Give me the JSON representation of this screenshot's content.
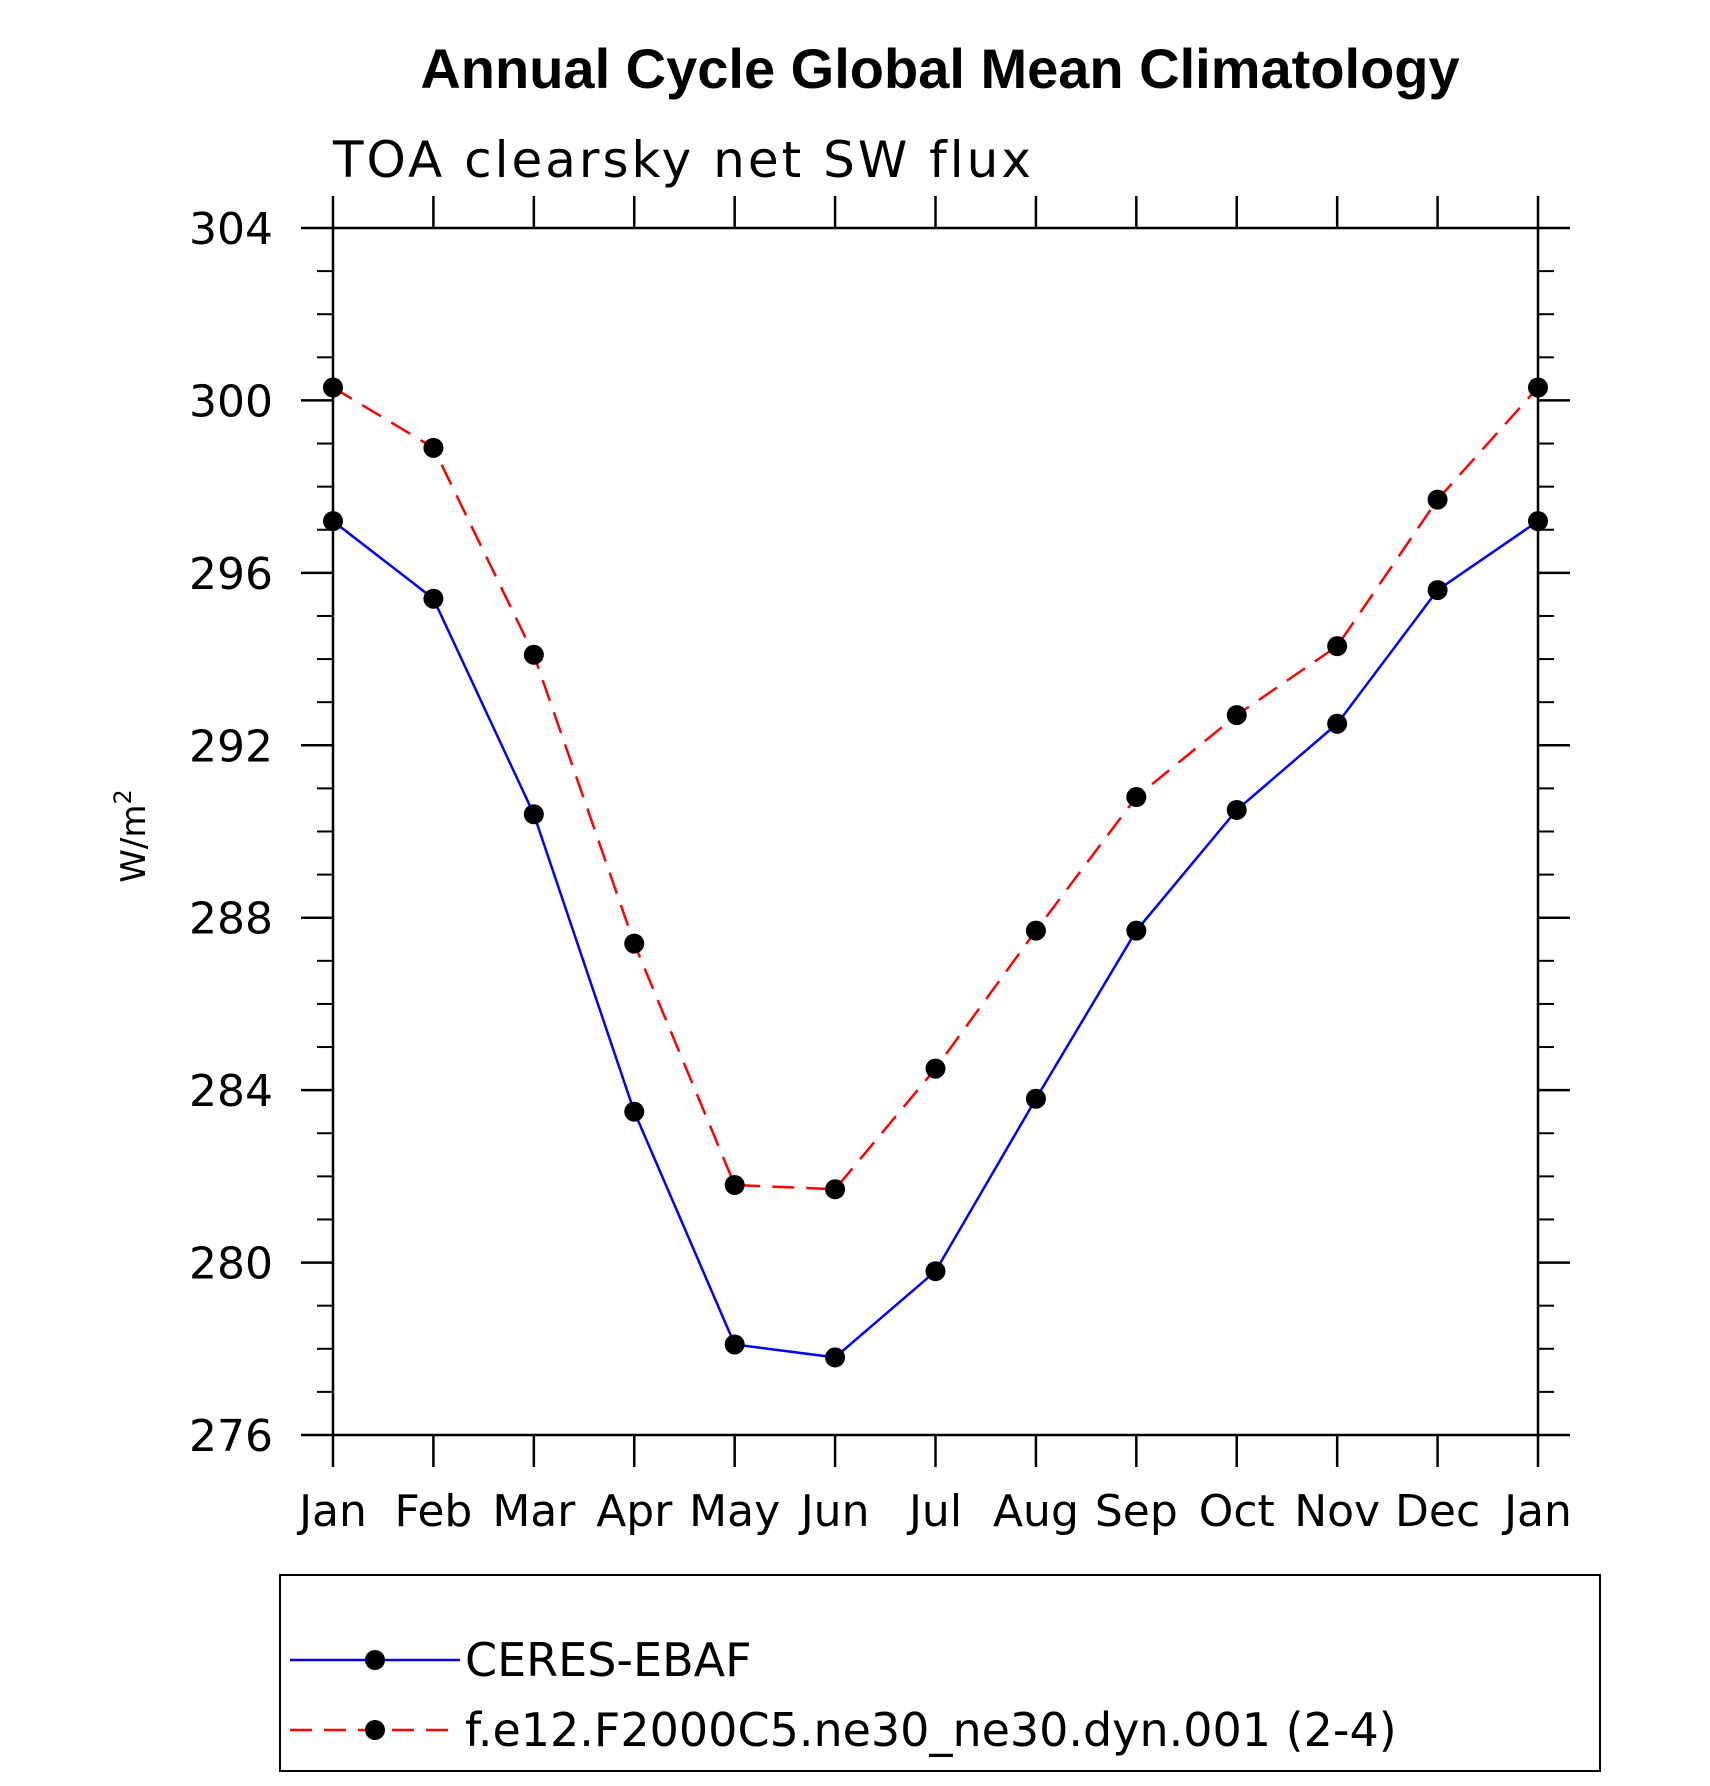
{
  "chart_data": {
    "type": "line",
    "title": "Annual Cycle Global Mean Climatology",
    "subtitle": "TOA clearsky net SW flux",
    "ylabel": "W/m",
    "ylabel_sup": "2",
    "xlabel": "",
    "categories": [
      "Jan",
      "Feb",
      "Mar",
      "Apr",
      "May",
      "Jun",
      "Jul",
      "Aug",
      "Sep",
      "Oct",
      "Nov",
      "Dec",
      "Jan"
    ],
    "ylim": [
      276,
      304
    ],
    "yticks": [
      276,
      280,
      284,
      288,
      292,
      296,
      300,
      304
    ],
    "grid": false,
    "legend_position": "bottom",
    "series": [
      {
        "name": "CERES-EBAF",
        "color": "#0000ff",
        "style": "solid",
        "marker": "filled-circle",
        "values": [
          297.2,
          295.4,
          290.4,
          283.5,
          278.1,
          277.8,
          279.8,
          283.8,
          287.7,
          290.5,
          292.5,
          295.6,
          297.2
        ]
      },
      {
        "name": "f.e12.F2000C5.ne30_ne30.dyn.001 (2-4)",
        "color": "#ff0000",
        "style": "dashed",
        "marker": "filled-circle",
        "values": [
          300.3,
          298.9,
          294.1,
          287.4,
          281.8,
          281.7,
          284.5,
          287.7,
          290.8,
          292.7,
          294.3,
          297.7,
          300.3
        ]
      }
    ]
  }
}
